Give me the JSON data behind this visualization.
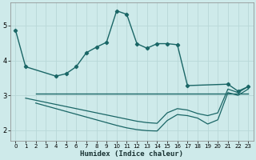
{
  "xlabel": "Humidex (Indice chaleur)",
  "bg_color": "#ceeaea",
  "line_color": "#1a6666",
  "grid_color": "#b8d8d8",
  "xlim": [
    -0.5,
    23.5
  ],
  "ylim": [
    1.7,
    5.65
  ],
  "yticks": [
    2,
    3,
    4,
    5
  ],
  "xticks": [
    0,
    1,
    2,
    3,
    4,
    5,
    6,
    7,
    8,
    9,
    10,
    11,
    12,
    13,
    14,
    15,
    16,
    17,
    18,
    19,
    20,
    21,
    22,
    23
  ],
  "line1_x": [
    0,
    1,
    4,
    5,
    6,
    7,
    8,
    9,
    10,
    11,
    12,
    13,
    14,
    15,
    16,
    17,
    21,
    22,
    23
  ],
  "line1_y": [
    4.87,
    3.82,
    3.55,
    3.62,
    3.82,
    4.22,
    4.38,
    4.52,
    5.42,
    5.32,
    4.48,
    4.35,
    4.48,
    4.48,
    4.45,
    3.28,
    3.32,
    3.12,
    3.25
  ],
  "line2_x": [
    2,
    23
  ],
  "line2_y": [
    3.05,
    3.05
  ],
  "line3_x": [
    1,
    2,
    3,
    4,
    5,
    6,
    7,
    8,
    9,
    10,
    11,
    12,
    13,
    14,
    15,
    16,
    17,
    18,
    19,
    20,
    21,
    22,
    23
  ],
  "line3_y": [
    2.92,
    2.86,
    2.8,
    2.74,
    2.68,
    2.62,
    2.56,
    2.5,
    2.44,
    2.38,
    2.32,
    2.26,
    2.22,
    2.2,
    2.5,
    2.62,
    2.58,
    2.48,
    2.42,
    2.5,
    3.18,
    3.08,
    3.25
  ],
  "line4_x": [
    2,
    3,
    4,
    5,
    6,
    7,
    8,
    9,
    10,
    11,
    12,
    13,
    14,
    15,
    16,
    17,
    18,
    19,
    20,
    21,
    22,
    23
  ],
  "line4_y": [
    2.78,
    2.7,
    2.62,
    2.54,
    2.46,
    2.38,
    2.3,
    2.22,
    2.14,
    2.07,
    2.02,
    1.99,
    1.98,
    2.28,
    2.45,
    2.42,
    2.35,
    2.18,
    2.3,
    3.08,
    3.0,
    3.18
  ]
}
